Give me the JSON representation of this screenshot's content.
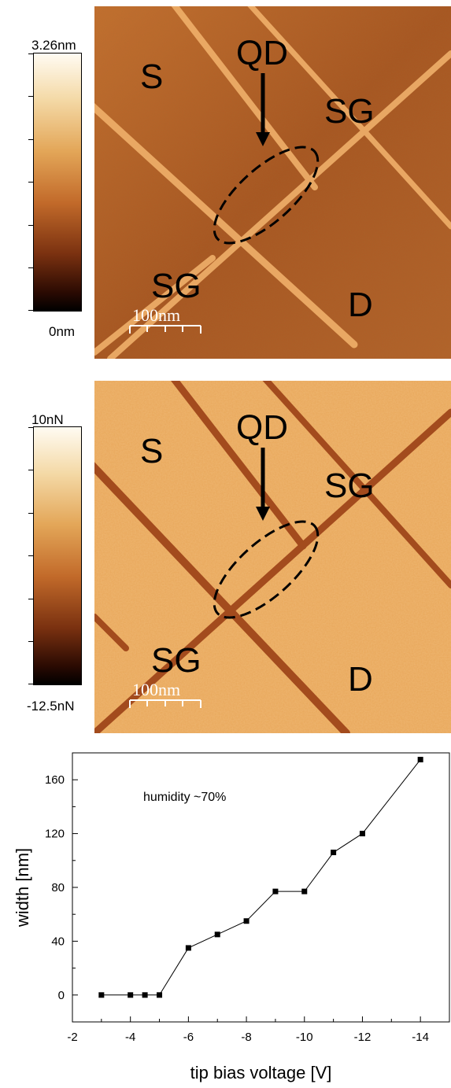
{
  "top_panel": {
    "colorbar_max": "3.26nm",
    "colorbar_min": "0nm",
    "labels": {
      "source": "S",
      "quantum_dot": "QD",
      "side_gate_right": "SG",
      "side_gate_left": "SG",
      "drain": "D"
    },
    "scale": "100nm"
  },
  "mid_panel": {
    "colorbar_max": "10nN",
    "colorbar_min": "-12.5nN",
    "labels": {
      "source": "S",
      "quantum_dot": "QD",
      "side_gate_right": "SG",
      "side_gate_left": "SG",
      "drain": "D"
    },
    "scale": "100nm"
  },
  "chart_data": {
    "type": "line",
    "xlabel": "tip bias voltage [V]",
    "ylabel": "width [nm]",
    "annotation": "humidity ~70%",
    "xlim": [
      -2,
      -15
    ],
    "ylim": [
      -20,
      180
    ],
    "xticks": [
      -2,
      -4,
      -6,
      -8,
      -10,
      -12,
      -14
    ],
    "xtick_labels": [
      "-2",
      "-4",
      "-6",
      "-8",
      "-10",
      "-12",
      "-14"
    ],
    "yticks": [
      0,
      40,
      80,
      120,
      160
    ],
    "ytick_labels": [
      "0",
      "40",
      "80",
      "120",
      "160"
    ],
    "x": [
      -3,
      -4,
      -4.5,
      -5,
      -6,
      -7,
      -8,
      -9,
      -10,
      -11,
      -12,
      -14
    ],
    "y": [
      0,
      0,
      0,
      0,
      35,
      45,
      55,
      77,
      77,
      106,
      120,
      175
    ]
  }
}
